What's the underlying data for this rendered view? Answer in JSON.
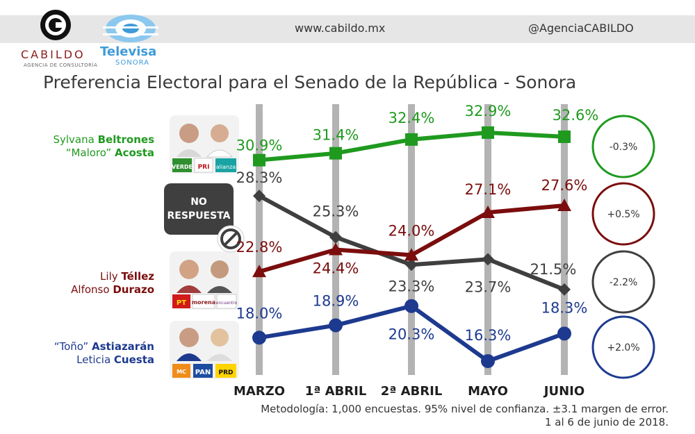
{
  "header": {
    "website": "www.cabildo.mx",
    "twitter": "@AgenciaCABILDO",
    "cabildo_name": "CABILDO",
    "cabildo_sub": "AGENCIA DE CONSULTORÍA",
    "televisa_name": "Televisa",
    "televisa_sub": "SONORA"
  },
  "title": "Preferencia Electoral para el Senado de la República - Sonora",
  "candidates": {
    "green": {
      "first": "Sylvana ",
      "first_bold": "Beltrones",
      "second_pre": "“Maloro” ",
      "second_bold": "Acosta",
      "parties": [
        "VERDE",
        "PRI",
        "alianza"
      ]
    },
    "no_respuesta": {
      "line1": "NO",
      "line2": "RESPUESTA"
    },
    "red": {
      "first": "Lily ",
      "first_bold": "Téllez",
      "second_pre": "Alfonso ",
      "second_bold": "Durazo",
      "parties": [
        "PT",
        "morena",
        "encuentro"
      ]
    },
    "blue": {
      "first": "“Toño” ",
      "first_bold": "Astiazarán",
      "second_pre": "Leticia ",
      "second_bold": "Cuesta",
      "parties": [
        "MC",
        "PAN",
        "PRD"
      ]
    }
  },
  "chart_data": {
    "type": "line",
    "categories": [
      "MARZO",
      "1ª ABRIL",
      "2ª ABRIL",
      "MAYO",
      "JUNIO"
    ],
    "ylim": [
      15,
      35
    ],
    "series": [
      {
        "id": "green",
        "color": "#1f9a1f",
        "marker": "square",
        "values": [
          30.9,
          31.4,
          32.4,
          32.9,
          32.6
        ],
        "labels": [
          "30.9%",
          "31.4%",
          "32.4%",
          "32.9%",
          "32.6%"
        ],
        "change": "-0.3%"
      },
      {
        "id": "gray",
        "color": "#3f3f3f",
        "marker": "diamond",
        "values": [
          28.3,
          25.3,
          23.3,
          23.7,
          21.5
        ],
        "labels": [
          "28.3%",
          "25.3%",
          "23.3%",
          "23.7%",
          "21.5%"
        ],
        "change": "-2.2%"
      },
      {
        "id": "red",
        "color": "#7b0d0d",
        "marker": "triangle",
        "values": [
          22.8,
          24.4,
          24.0,
          27.1,
          27.6
        ],
        "labels": [
          "22.8%",
          "24.4%",
          "24.0%",
          "27.1%",
          "27.6%"
        ],
        "change": "+0.5%"
      },
      {
        "id": "blue",
        "color": "#1d3a8f",
        "marker": "circle",
        "values": [
          18.0,
          18.9,
          20.3,
          16.3,
          18.3
        ],
        "labels": [
          "18.0%",
          "18.9%",
          "20.3%",
          "16.3%",
          "18.3%"
        ],
        "change": "+2.0%"
      }
    ]
  },
  "methodology": {
    "line1": "Metodología: 1,000 encuestas. 95% nivel de confianza. ±3.1 margen de error.",
    "line2": "1 al 6 de junio de 2018."
  }
}
